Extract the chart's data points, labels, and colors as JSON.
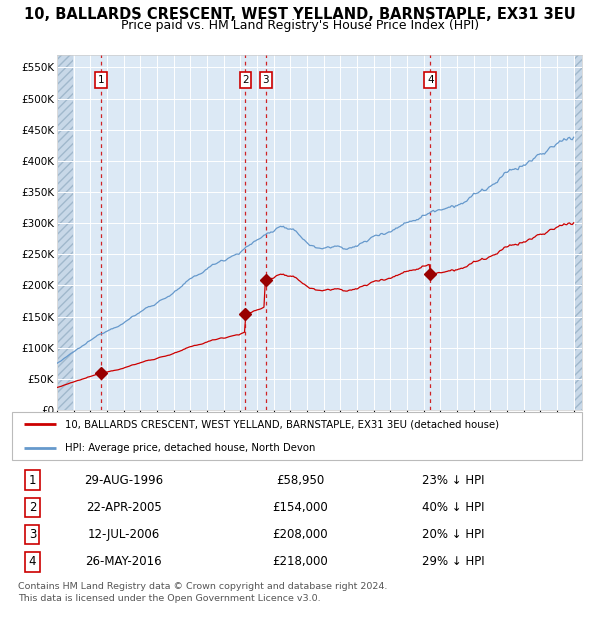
{
  "title": "10, BALLARDS CRESCENT, WEST YELLAND, BARNSTAPLE, EX31 3EU",
  "subtitle": "Price paid vs. HM Land Registry's House Price Index (HPI)",
  "bg_color": "#dce9f5",
  "red_line_color": "#cc0000",
  "blue_line_color": "#6699cc",
  "marker_color": "#990000",
  "vline_red_color": "#cc0000",
  "grid_color": "#ffffff",
  "ylim": [
    0,
    570000
  ],
  "yticks": [
    0,
    50000,
    100000,
    150000,
    200000,
    250000,
    300000,
    350000,
    400000,
    450000,
    500000,
    550000
  ],
  "ytick_labels": [
    "£0",
    "£50K",
    "£100K",
    "£150K",
    "£200K",
    "£250K",
    "£300K",
    "£350K",
    "£400K",
    "£450K",
    "£500K",
    "£550K"
  ],
  "sale_prices": [
    58950,
    154000,
    208000,
    218000
  ],
  "sale_years_float": [
    1996.664,
    2005.306,
    2006.536,
    2016.403
  ],
  "sale_labels": [
    "1",
    "2",
    "3",
    "4"
  ],
  "legend_entries": [
    "10, BALLARDS CRESCENT, WEST YELLAND, BARNSTAPLE, EX31 3EU (detached house)",
    "HPI: Average price, detached house, North Devon"
  ],
  "table_rows": [
    [
      "1",
      "29-AUG-1996",
      "£58,950",
      "23% ↓ HPI"
    ],
    [
      "2",
      "22-APR-2005",
      "£154,000",
      "40% ↓ HPI"
    ],
    [
      "3",
      "12-JUL-2006",
      "£208,000",
      "20% ↓ HPI"
    ],
    [
      "4",
      "26-MAY-2016",
      "£218,000",
      "29% ↓ HPI"
    ]
  ],
  "footer": "Contains HM Land Registry data © Crown copyright and database right 2024.\nThis data is licensed under the Open Government Licence v3.0."
}
